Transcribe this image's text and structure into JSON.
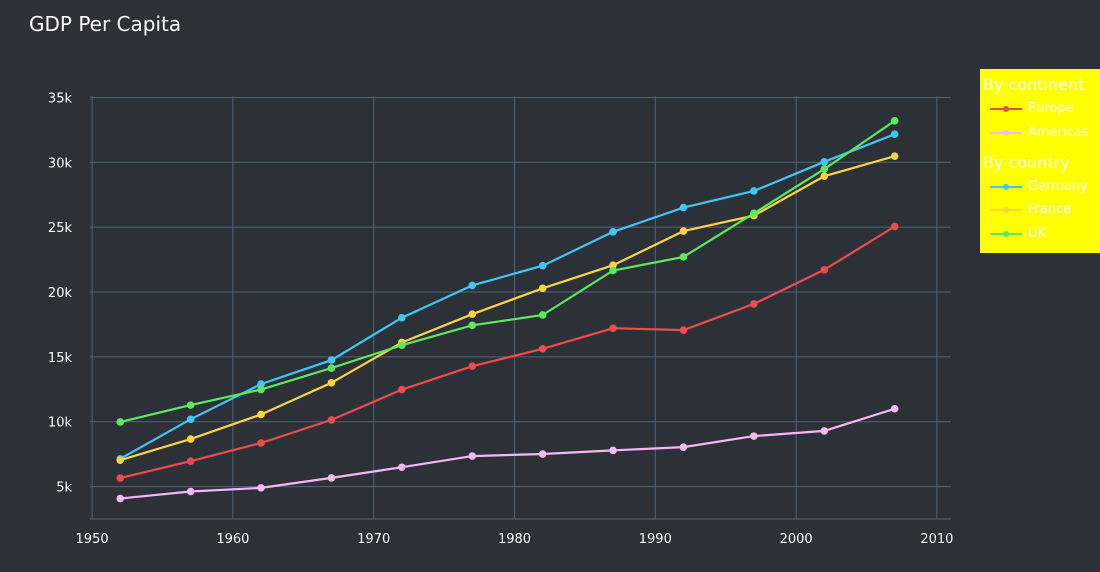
{
  "chart_data": {
    "type": "line",
    "title": "GDP Per Capita",
    "xlabel": "",
    "ylabel": "",
    "xlim": [
      1949,
      2011
    ],
    "ylim": [
      2500,
      36500
    ],
    "x_ticks": [
      1950,
      1960,
      1970,
      1980,
      1990,
      2000,
      2010
    ],
    "y_ticks": [
      5000,
      10000,
      15000,
      20000,
      25000,
      30000,
      35000
    ],
    "y_tick_labels": [
      "5k",
      "10k",
      "15k",
      "20k",
      "25k",
      "30k",
      "35k"
    ],
    "grid": true,
    "legend_position": "top-right",
    "x": [
      1952,
      1957,
      1962,
      1967,
      1972,
      1977,
      1982,
      1987,
      1992,
      1997,
      2002,
      2007
    ],
    "legend_groups": [
      {
        "title": "By continent",
        "series": [
          "Europe",
          "Americas"
        ]
      },
      {
        "title": "By country",
        "series": [
          "Germany",
          "France",
          "UK"
        ]
      }
    ],
    "series": [
      {
        "name": "Europe",
        "color": "#ef4b4b",
        "values": [
          5660,
          6960,
          8360,
          10140,
          12480,
          14280,
          15620,
          17210,
          17060,
          19080,
          21710,
          25050
        ]
      },
      {
        "name": "Americas",
        "color": "#f7b6f7",
        "values": [
          4080,
          4620,
          4900,
          5670,
          6490,
          7350,
          7510,
          7790,
          8040,
          8890,
          9290,
          11000
        ]
      },
      {
        "name": "Germany",
        "color": "#3fc6f5",
        "values": [
          7140,
          10190,
          12900,
          14750,
          18020,
          20510,
          22030,
          24640,
          26510,
          27790,
          30040,
          32170
        ]
      },
      {
        "name": "France",
        "color": "#fdd43c",
        "values": [
          7030,
          8660,
          10560,
          13000,
          16110,
          18290,
          20290,
          22070,
          24700,
          25890,
          28930,
          30470
        ]
      },
      {
        "name": "UK",
        "color": "#5bea5b",
        "values": [
          9980,
          11280,
          12480,
          14140,
          15900,
          17430,
          18230,
          21660,
          22710,
          26070,
          29480,
          33200
        ]
      }
    ]
  }
}
